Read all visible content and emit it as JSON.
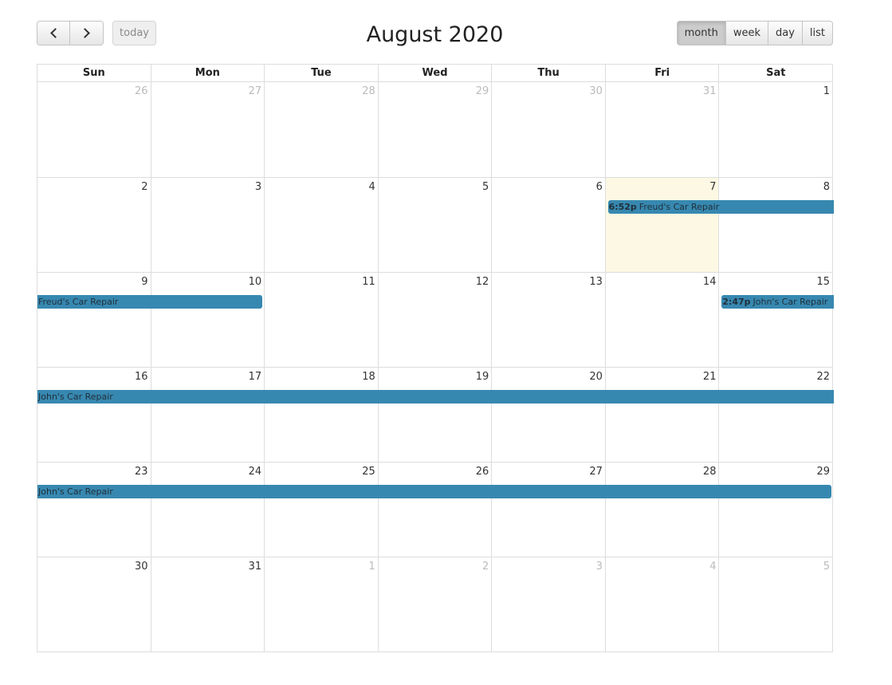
{
  "header": {
    "title": "August 2020",
    "prev_icon": "chevron-left-icon",
    "next_icon": "chevron-right-icon",
    "today_label": "today",
    "views": [
      {
        "label": "month",
        "active": true
      },
      {
        "label": "week",
        "active": false
      },
      {
        "label": "day",
        "active": false
      },
      {
        "label": "list",
        "active": false
      }
    ]
  },
  "weekdays": [
    "Sun",
    "Mon",
    "Tue",
    "Wed",
    "Thu",
    "Fri",
    "Sat"
  ],
  "weeks": [
    [
      {
        "d": "26",
        "other": true
      },
      {
        "d": "27",
        "other": true
      },
      {
        "d": "28",
        "other": true
      },
      {
        "d": "29",
        "other": true
      },
      {
        "d": "30",
        "other": true
      },
      {
        "d": "31",
        "other": true
      },
      {
        "d": "1",
        "other": false
      }
    ],
    [
      {
        "d": "2",
        "other": false
      },
      {
        "d": "3",
        "other": false
      },
      {
        "d": "4",
        "other": false
      },
      {
        "d": "5",
        "other": false
      },
      {
        "d": "6",
        "other": false
      },
      {
        "d": "7",
        "other": false,
        "today": true
      },
      {
        "d": "8",
        "other": false
      }
    ],
    [
      {
        "d": "9",
        "other": false
      },
      {
        "d": "10",
        "other": false
      },
      {
        "d": "11",
        "other": false
      },
      {
        "d": "12",
        "other": false
      },
      {
        "d": "13",
        "other": false
      },
      {
        "d": "14",
        "other": false
      },
      {
        "d": "15",
        "other": false
      }
    ],
    [
      {
        "d": "16",
        "other": false
      },
      {
        "d": "17",
        "other": false
      },
      {
        "d": "18",
        "other": false
      },
      {
        "d": "19",
        "other": false
      },
      {
        "d": "20",
        "other": false
      },
      {
        "d": "21",
        "other": false
      },
      {
        "d": "22",
        "other": false
      }
    ],
    [
      {
        "d": "23",
        "other": false
      },
      {
        "d": "24",
        "other": false
      },
      {
        "d": "25",
        "other": false
      },
      {
        "d": "26",
        "other": false
      },
      {
        "d": "27",
        "other": false
      },
      {
        "d": "28",
        "other": false
      },
      {
        "d": "29",
        "other": false
      }
    ],
    [
      {
        "d": "30",
        "other": false
      },
      {
        "d": "31",
        "other": false
      },
      {
        "d": "1",
        "other": true
      },
      {
        "d": "2",
        "other": true
      },
      {
        "d": "3",
        "other": true
      },
      {
        "d": "4",
        "other": true
      },
      {
        "d": "5",
        "other": true
      }
    ]
  ],
  "events": [
    {
      "week": 1,
      "start": 5,
      "end": 6,
      "time": "6:52p",
      "title": "Freud's Car Repair",
      "start_here": true,
      "end_here": false
    },
    {
      "week": 2,
      "start": 0,
      "end": 1,
      "time": "",
      "title": "Freud's Car Repair",
      "start_here": false,
      "end_here": true
    },
    {
      "week": 2,
      "start": 6,
      "end": 6,
      "time": "2:47p",
      "title": "John's Car Repair",
      "start_here": true,
      "end_here": false
    },
    {
      "week": 3,
      "start": 0,
      "end": 6,
      "time": "",
      "title": "John's Car Repair",
      "start_here": false,
      "end_here": false
    },
    {
      "week": 4,
      "start": 0,
      "end": 6,
      "time": "",
      "title": "John's Car Repair",
      "start_here": false,
      "end_here": true
    }
  ],
  "colors": {
    "event": "#3788b0",
    "today": "#fcf8e3"
  }
}
